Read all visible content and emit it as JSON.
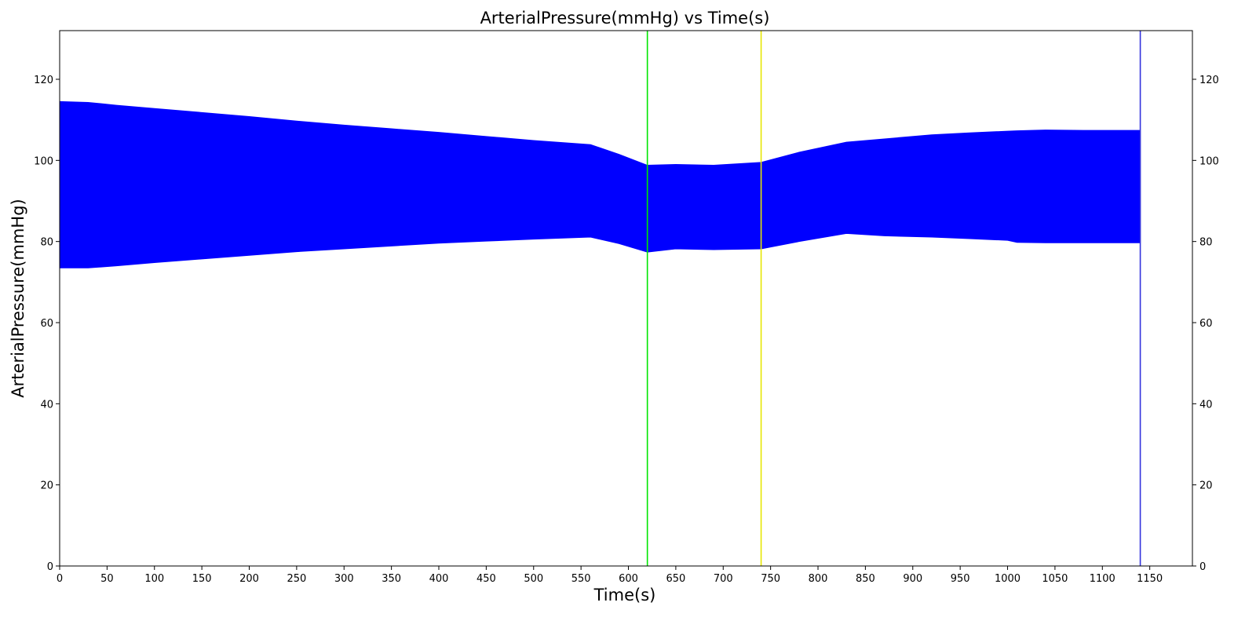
{
  "chart_data": {
    "type": "area",
    "title": "ArterialPressure(mmHg) vs Time(s)",
    "xlabel": "Time(s)",
    "ylabel": "ArterialPressure(mmHg)",
    "xlim": [
      0,
      1195
    ],
    "ylim": [
      0,
      132
    ],
    "x_ticks": [
      0,
      50,
      100,
      150,
      200,
      250,
      300,
      350,
      400,
      450,
      500,
      550,
      600,
      650,
      700,
      750,
      800,
      850,
      900,
      950,
      1000,
      1050,
      1100,
      1150
    ],
    "y_ticks": [
      0,
      20,
      40,
      60,
      80,
      100,
      120
    ],
    "y_ticks_right": true,
    "grid": false,
    "series": [
      {
        "color": "#0000ff",
        "description_type": "oscillating envelope (systolic upper / diastolic lower)",
        "x": [
          0,
          30,
          60,
          100,
          150,
          200,
          250,
          300,
          350,
          400,
          450,
          500,
          560,
          590,
          620,
          650,
          690,
          740,
          780,
          830,
          870,
          920,
          960,
          1000,
          1010,
          1040,
          1080,
          1140
        ],
        "upper": [
          114.5,
          114.3,
          113.6,
          112.8,
          111.8,
          110.8,
          109.7,
          108.7,
          107.8,
          106.9,
          105.9,
          104.9,
          103.9,
          101.5,
          98.8,
          99.0,
          98.8,
          99.5,
          102,
          104.5,
          105.3,
          106.3,
          106.8,
          107.2,
          107.3,
          107.5,
          107.4,
          107.4
        ],
        "lower": [
          73.5,
          73.5,
          74.0,
          74.8,
          75.7,
          76.6,
          77.5,
          78.2,
          78.9,
          79.6,
          80.1,
          80.6,
          81.1,
          79.5,
          77.4,
          78.2,
          78.0,
          78.2,
          80.0,
          82.0,
          81.4,
          81.1,
          80.7,
          80.3,
          79.8,
          79.7,
          79.7,
          79.7
        ]
      }
    ],
    "vertical_lines": [
      {
        "x": 620,
        "color": "#00e600"
      },
      {
        "x": 740,
        "color": "#e6e600"
      },
      {
        "x": 1140,
        "color": "#3333dd"
      }
    ]
  }
}
